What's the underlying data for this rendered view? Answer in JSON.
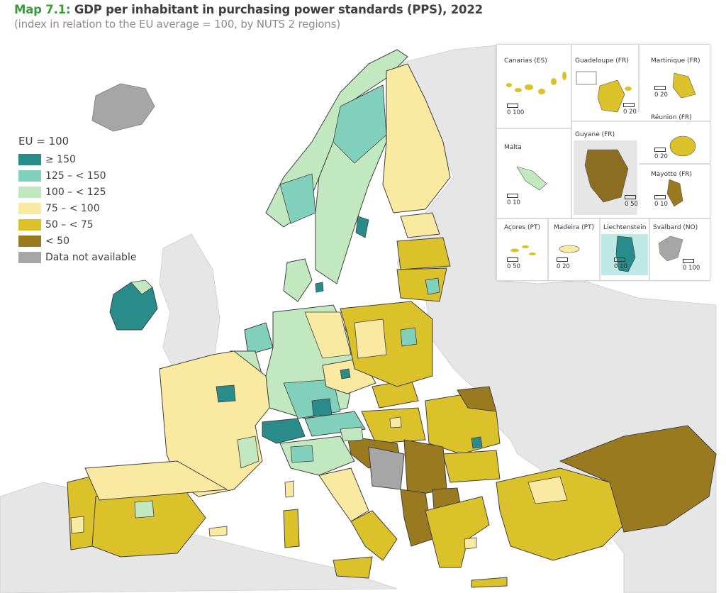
{
  "header": {
    "title_number": "Map 7.1:",
    "title_text": " GDP per inhabitant in purchasing power standards (PPS), 2022",
    "subtitle": "(index in relation to the EU average = 100, by NUTS 2 regions)"
  },
  "legend": {
    "title": "EU = 100",
    "classes": [
      {
        "label": "≥ 150",
        "color": "#2a8c8a"
      },
      {
        "label": "125 – < 150",
        "color": "#80d0bc"
      },
      {
        "label": "100 – < 125",
        "color": "#c2e8c0"
      },
      {
        "label": "75 – < 100",
        "color": "#fae9a0"
      },
      {
        "label": "50 – < 75",
        "color": "#dcc22a"
      },
      {
        "label": "< 50",
        "color": "#9a7a20"
      },
      {
        "label": "Data not available",
        "color": "#a6a6a6"
      }
    ]
  },
  "colors": {
    "sea": "#ffffff",
    "non_eu_land": "#e6e6e6",
    "border": "#404040"
  },
  "insets": [
    {
      "name": "Canarias (ES)",
      "scale_label": "0  100"
    },
    {
      "name": "Guadeloupe (FR)",
      "scale_label": "0  20"
    },
    {
      "name": "Martinique (FR)",
      "scale_label": "0  20"
    },
    {
      "name": "Réunion (FR)",
      "scale_label": "0  20"
    },
    {
      "name": "Guyane (FR)",
      "scale_label": "0 50"
    },
    {
      "name": "Malta",
      "scale_label": "0   10"
    },
    {
      "name": "Mayotte (FR)",
      "scale_label": "0  10"
    },
    {
      "name": "Açores (PT)",
      "scale_label": "0   50"
    },
    {
      "name": "Madeira (PT)",
      "scale_label": "0  20"
    },
    {
      "name": "Liechtenstein",
      "scale_label": "0  10"
    },
    {
      "name": "Svalbard (NO)",
      "scale_label": "0 100"
    }
  ]
}
